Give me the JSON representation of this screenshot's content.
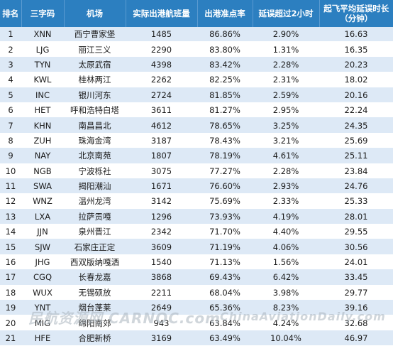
{
  "headers": [
    "排名",
    "三字码",
    "机场",
    "实际出港航班量",
    "出港准点率",
    "延误超过2小时",
    "起飞平均延误时长",
    "（分钟）"
  ],
  "rows": [
    [
      "1",
      "XNN",
      "西宁曹家堡",
      "1485",
      "86.86%",
      "2.90%",
      "16.63"
    ],
    [
      "2",
      "LJG",
      "丽江三义",
      "2290",
      "83.80%",
      "1.31%",
      "16.35"
    ],
    [
      "3",
      "TYN",
      "太原武宿",
      "4398",
      "83.42%",
      "2.28%",
      "20.23"
    ],
    [
      "4",
      "KWL",
      "桂林两江",
      "2262",
      "82.25%",
      "2.31%",
      "18.02"
    ],
    [
      "5",
      "INC",
      "银川河东",
      "2724",
      "81.85%",
      "2.59%",
      "20.16"
    ],
    [
      "6",
      "HET",
      "呼和浩特白塔",
      "3611",
      "81.27%",
      "2.95%",
      "22.24"
    ],
    [
      "7",
      "KHN",
      "南昌昌北",
      "4612",
      "78.65%",
      "3.25%",
      "24.35"
    ],
    [
      "8",
      "ZUH",
      "珠海金湾",
      "3187",
      "78.43%",
      "3.21%",
      "25.69"
    ],
    [
      "9",
      "NAY",
      "北京南苑",
      "1807",
      "78.19%",
      "4.61%",
      "25.11"
    ],
    [
      "10",
      "NGB",
      "宁波栎社",
      "3075",
      "77.27%",
      "2.28%",
      "23.84"
    ],
    [
      "11",
      "SWA",
      "揭阳潮汕",
      "1671",
      "76.60%",
      "2.93%",
      "24.76"
    ],
    [
      "12",
      "WNZ",
      "温州龙湾",
      "3142",
      "75.69%",
      "2.33%",
      "25.33"
    ],
    [
      "13",
      "LXA",
      "拉萨贡嘎",
      "1296",
      "73.93%",
      "4.19%",
      "28.01"
    ],
    [
      "14",
      "JJN",
      "泉州晋江",
      "2342",
      "71.70%",
      "4.40%",
      "29.55"
    ],
    [
      "15",
      "SJW",
      "石家庄正定",
      "3609",
      "71.19%",
      "4.06%",
      "30.56"
    ],
    [
      "16",
      "JHG",
      "西双版纳嘎洒",
      "1540",
      "71.13%",
      "1.56%",
      "24.01"
    ],
    [
      "17",
      "CGQ",
      "长春龙嘉",
      "3868",
      "69.43%",
      "6.42%",
      "33.45"
    ],
    [
      "18",
      "WUX",
      "无锡硕放",
      "2211",
      "68.04%",
      "3.98%",
      "29.77"
    ],
    [
      "19",
      "YNT",
      "烟台蓬莱",
      "2649",
      "65.36%",
      "8.23%",
      "39.16"
    ],
    [
      "20",
      "MIG",
      "绵阳南郊",
      "943",
      "63.84%",
      "4.24%",
      "32.68"
    ],
    [
      "21",
      "HFE",
      "合肥新桥",
      "3169",
      "63.49%",
      "10.04%",
      "46.97"
    ]
  ],
  "watermark": [
    "民航资源网 CARNOC.com",
    "ChinaAviationDaily.com"
  ]
}
